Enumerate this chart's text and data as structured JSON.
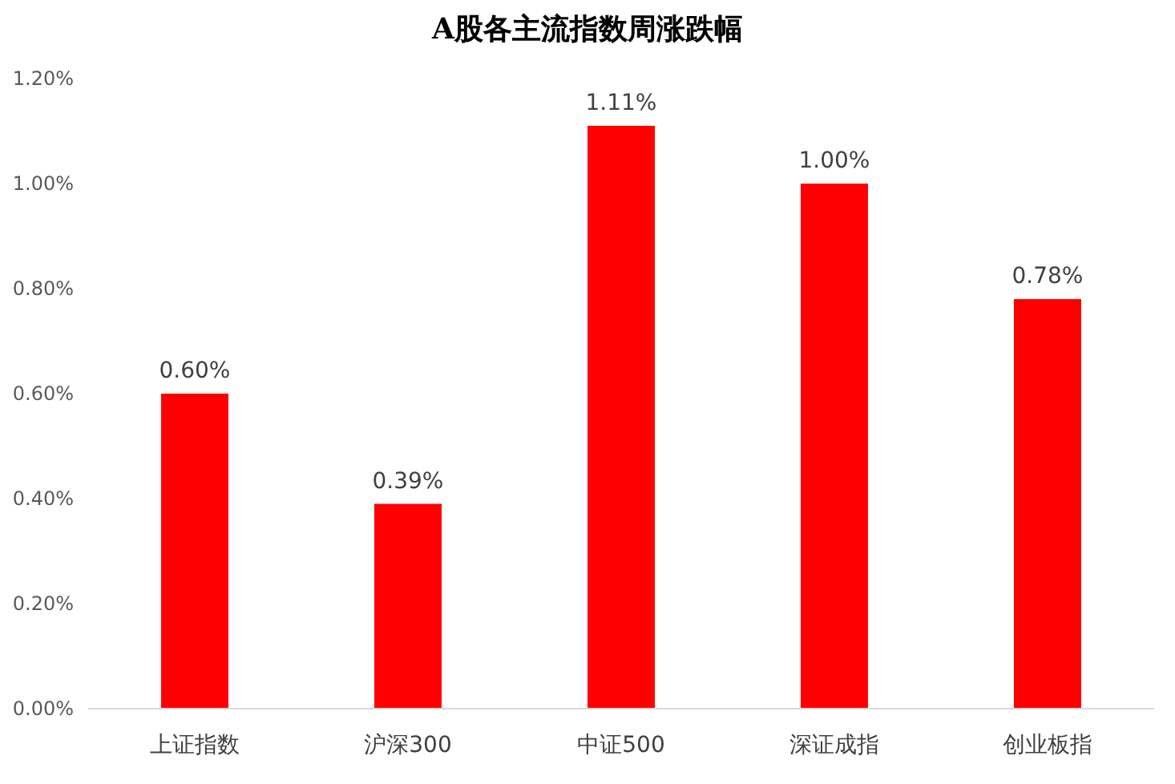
{
  "chart_data": {
    "type": "bar",
    "title": "A股各主流指数周涨跌幅",
    "categories": [
      "上证指数",
      "沪深300",
      "中证500",
      "深证成指",
      "创业板指"
    ],
    "values": [
      0.6,
      0.39,
      1.11,
      1.0,
      0.78
    ],
    "value_labels": [
      "0.60%",
      "0.39%",
      "1.11%",
      "1.00%",
      "0.78%"
    ],
    "color": "#ff0000",
    "ylim": [
      0,
      1.2
    ],
    "yticks": [
      {
        "value": 0,
        "label": "0.00%"
      },
      {
        "value": 0.2,
        "label": "0.20%"
      },
      {
        "value": 0.4,
        "label": "0.40%"
      },
      {
        "value": 0.6,
        "label": "0.60%"
      },
      {
        "value": 0.8,
        "label": "0.80%"
      },
      {
        "value": 1.0,
        "label": "1.00%"
      },
      {
        "value": 1.2,
        "label": "1.20%"
      }
    ],
    "grid": false
  }
}
